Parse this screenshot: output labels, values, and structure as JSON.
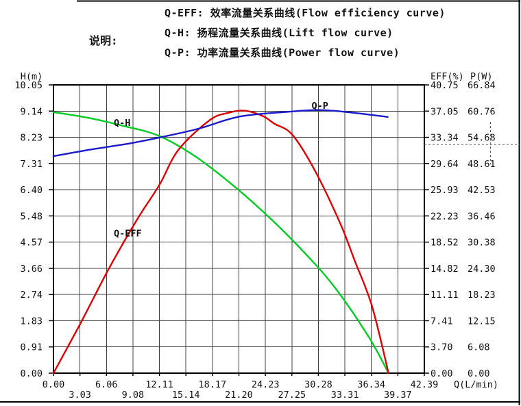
{
  "header": {
    "caption": "说明:",
    "legend_lines": [
      "Q-EFF: 效率流量关系曲线(Flow efficiency curve)",
      "Q-H: 扬程流量关系曲线(Lift flow curve)",
      "Q-P: 功率流量关系曲线(Power flow curve)"
    ]
  },
  "chart_data": {
    "type": "line",
    "grid": true,
    "x_axis": {
      "label": "Q(L/min)",
      "max": 42.39,
      "ticks": [
        "0.00",
        "3.03",
        "6.06",
        "9.08",
        "12.11",
        "15.14",
        "18.17",
        "21.20",
        "24.23",
        "27.25",
        "30.28",
        "33.31",
        "36.34",
        "39.37",
        "42.39"
      ]
    },
    "left_axis": {
      "label": "H(m)",
      "max": 10.05,
      "ticks": [
        "10.05",
        "9.14",
        "8.23",
        "7.31",
        "6.40",
        "5.48",
        "4.57",
        "3.66",
        "2.74",
        "1.83",
        "0.91",
        "0.00"
      ]
    },
    "right_axis_eff": {
      "label": "EFF(%)",
      "max": 40.75,
      "ticks": [
        "40.75",
        "37.05",
        "33.34",
        "29.64",
        "25.93",
        "22.23",
        "18.52",
        "14.82",
        "11.11",
        "7.41",
        "3.70",
        "0.00"
      ]
    },
    "right_axis_p": {
      "label": "P(W)",
      "max": 66.84,
      "ticks": [
        "66.84",
        "60.76",
        "54.68",
        "48.61",
        "42.53",
        "36.46",
        "30.38",
        "24.30",
        "18.23",
        "12.15",
        "6.08",
        "0.00"
      ]
    },
    "series": [
      {
        "name": "Q-H",
        "scale": "h",
        "color": "#00cc22",
        "points": [
          [
            0,
            9.1
          ],
          [
            4,
            8.9
          ],
          [
            8,
            8.62
          ],
          [
            12,
            8.28
          ],
          [
            16,
            7.6
          ],
          [
            20,
            6.68
          ],
          [
            24,
            5.62
          ],
          [
            28,
            4.42
          ],
          [
            32,
            3.05
          ],
          [
            36,
            1.28
          ],
          [
            38.3,
            0.0
          ]
        ]
      },
      {
        "name": "Q-EFF",
        "scale": "eff",
        "color": "#dd0000",
        "points": [
          [
            0,
            0
          ],
          [
            3.2,
            7.3
          ],
          [
            6.3,
            14.7
          ],
          [
            9.6,
            21.8
          ],
          [
            12.1,
            26.6
          ],
          [
            14.3,
            31.6
          ],
          [
            17.9,
            35.8
          ],
          [
            20.0,
            36.8
          ],
          [
            21.9,
            37.1
          ],
          [
            24.0,
            36.3
          ],
          [
            25.2,
            35.3
          ],
          [
            27.3,
            33.7
          ],
          [
            29.9,
            28.6
          ],
          [
            32.8,
            21.1
          ],
          [
            34.4,
            16.0
          ],
          [
            36.4,
            9.5
          ],
          [
            38.3,
            0
          ]
        ]
      },
      {
        "name": "Q-P",
        "scale": "p",
        "color": "#1a1acd",
        "points": [
          [
            0,
            50.3
          ],
          [
            4.1,
            51.8
          ],
          [
            8.8,
            53.3
          ],
          [
            12.5,
            54.8
          ],
          [
            16.6,
            56.7
          ],
          [
            21.3,
            59.5
          ],
          [
            26.8,
            60.6
          ],
          [
            30.7,
            61.0
          ],
          [
            34.6,
            60.3
          ],
          [
            38.2,
            59.4
          ]
        ]
      }
    ],
    "curve_labels": [
      {
        "text": "Q-H",
        "q": 6.9,
        "value": 8.62,
        "scale": "h"
      },
      {
        "text": "Q-EFF",
        "q": 6.9,
        "value": 19.3,
        "scale": "eff"
      },
      {
        "text": "Q-P",
        "q": 29.5,
        "value": 61.3,
        "scale": "p"
      }
    ],
    "marker": {
      "p_value": 53.0
    }
  }
}
